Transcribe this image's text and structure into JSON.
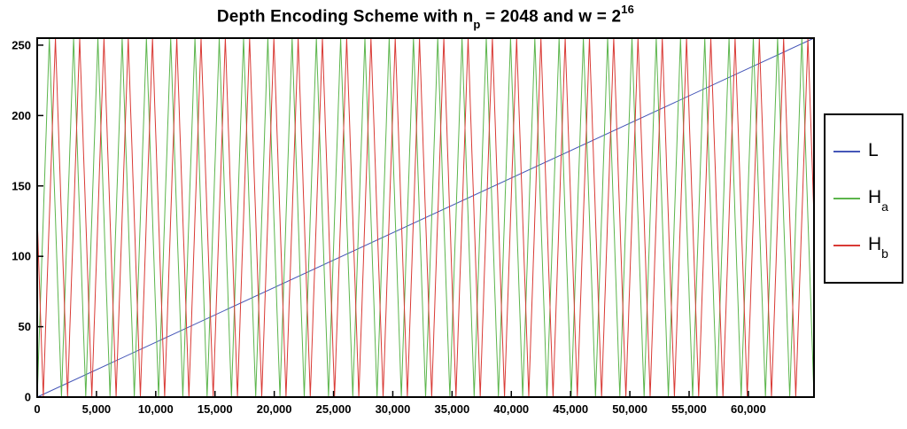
{
  "title": {
    "part1": "Depth Encoding Scheme with n",
    "sub1": "p",
    "part2": " = 2048 and w = 2",
    "sup1": "16",
    "full": "Depth Encoding Scheme with n_p = 2048 and w = 2^16"
  },
  "chart_data": {
    "type": "line",
    "title": "Depth Encoding Scheme with n_p = 2048 and w = 2^16",
    "xlabel": "",
    "ylabel": "",
    "x_range": [
      0,
      65536
    ],
    "y_range": [
      0,
      255
    ],
    "x_ticks": [
      0,
      5000,
      10000,
      15000,
      20000,
      25000,
      30000,
      35000,
      40000,
      45000,
      50000,
      55000,
      60000
    ],
    "x_tick_labels": [
      "0",
      "5,000",
      "10,000",
      "15,000",
      "20,000",
      "25,000",
      "30,000",
      "35,000",
      "40,000",
      "45,000",
      "50,000",
      "55,000",
      "60,000"
    ],
    "y_ticks": [
      0,
      50,
      100,
      150,
      200,
      250
    ],
    "y_tick_labels": [
      "0",
      "50",
      "100",
      "150",
      "200",
      "250"
    ],
    "grid": false,
    "frame_color": "#000000",
    "background": "#ffffff",
    "legend_position": "right-outside",
    "series": [
      {
        "name": "L",
        "kind": "linear",
        "color": "#4556b8",
        "x0": 0,
        "y0": 0,
        "x1": 65536,
        "y1": 255
      },
      {
        "name": "Ha",
        "kind": "triangle",
        "color": "#5cb54c",
        "period": 2048,
        "phase": 0,
        "min": 0,
        "max": 255
      },
      {
        "name": "Hb",
        "kind": "triangle",
        "color": "#d93a35",
        "period": 2048,
        "phase": -512,
        "min": 0,
        "max": 255
      }
    ],
    "legend": [
      {
        "label": "L",
        "sub": ""
      },
      {
        "label": "H",
        "sub": "a"
      },
      {
        "label": "H",
        "sub": "b"
      }
    ]
  }
}
